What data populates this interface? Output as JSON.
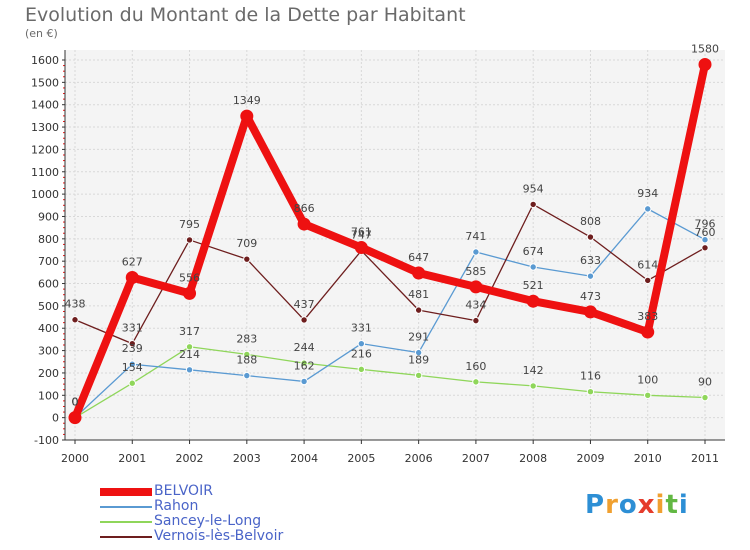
{
  "title": "Evolution du Montant de la Dette par Habitant",
  "subtitle": "(en €)",
  "chart_data": {
    "type": "line",
    "title": "Evolution du Montant de la Dette par Habitant",
    "ylabel": "(en €)",
    "x": [
      "2000",
      "2001",
      "2002",
      "2003",
      "2004",
      "2005",
      "2006",
      "2007",
      "2008",
      "2009",
      "2010",
      "2011"
    ],
    "ylim": [
      -100,
      1600
    ],
    "yticks": [
      -100,
      0,
      100,
      200,
      300,
      400,
      500,
      600,
      700,
      800,
      900,
      1000,
      1100,
      1200,
      1300,
      1400,
      1500,
      1600
    ],
    "grid": true,
    "legend_position": "bottom-left",
    "series": [
      {
        "name": "BELVOIR",
        "color": "#ee1111",
        "values": [
          0,
          627,
          556,
          1349,
          866,
          761,
          647,
          585,
          521,
          473,
          383,
          1580
        ],
        "labels": [
          "0",
          "627",
          "556",
          "1349",
          "866",
          "761",
          "647",
          "585",
          "521",
          "473",
          "383",
          "1580"
        ]
      },
      {
        "name": "Rahon",
        "color": "#5a9ad2",
        "values": [
          0,
          239,
          214,
          188,
          162,
          331,
          291,
          741,
          674,
          633,
          934,
          796
        ],
        "labels": [
          "0",
          "239",
          "214",
          "188",
          "162",
          "331",
          "291",
          "741",
          "674",
          "633",
          "934",
          "796"
        ]
      },
      {
        "name": "Sancey-le-Long",
        "color": "#8fd65a",
        "values": [
          0,
          154,
          317,
          283,
          244,
          216,
          189,
          160,
          142,
          116,
          100,
          90
        ],
        "labels": [
          "0",
          "154",
          "317",
          "283",
          "244",
          "216",
          "189",
          "160",
          "142",
          "116",
          "100",
          "90"
        ]
      },
      {
        "name": "Vernois-lès-Belvoir",
        "color": "#6e1e1e",
        "values": [
          438,
          331,
          795,
          709,
          437,
          747,
          481,
          434,
          954,
          808,
          614,
          760
        ],
        "labels": [
          "438",
          "331",
          "795",
          "709",
          "437",
          "747",
          "481",
          "434",
          "954",
          "808",
          "614",
          "760"
        ]
      }
    ]
  },
  "logo": {
    "letters": [
      "P",
      "r",
      "o",
      "x",
      "i",
      "t",
      "i"
    ],
    "colors": [
      "#2d8fd5",
      "#f0a030",
      "#2d8fd5",
      "#e53c2c",
      "#f0a030",
      "#62b843",
      "#2d8fd5"
    ]
  }
}
